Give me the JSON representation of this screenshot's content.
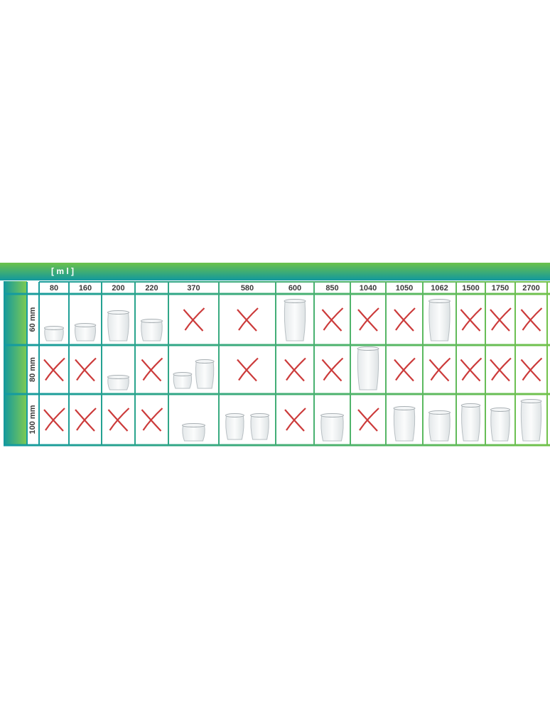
{
  "header": {
    "unit": "[ m l ]"
  },
  "table": {
    "columns": [
      "80",
      "160",
      "200",
      "220",
      "370",
      "580",
      "600",
      "850",
      "1040",
      "1050",
      "1062",
      "1500",
      "1750",
      "2700"
    ],
    "rows": [
      {
        "label": "60 mm"
      },
      {
        "label": "80 mm"
      },
      {
        "label": "100 mm"
      }
    ]
  }
}
